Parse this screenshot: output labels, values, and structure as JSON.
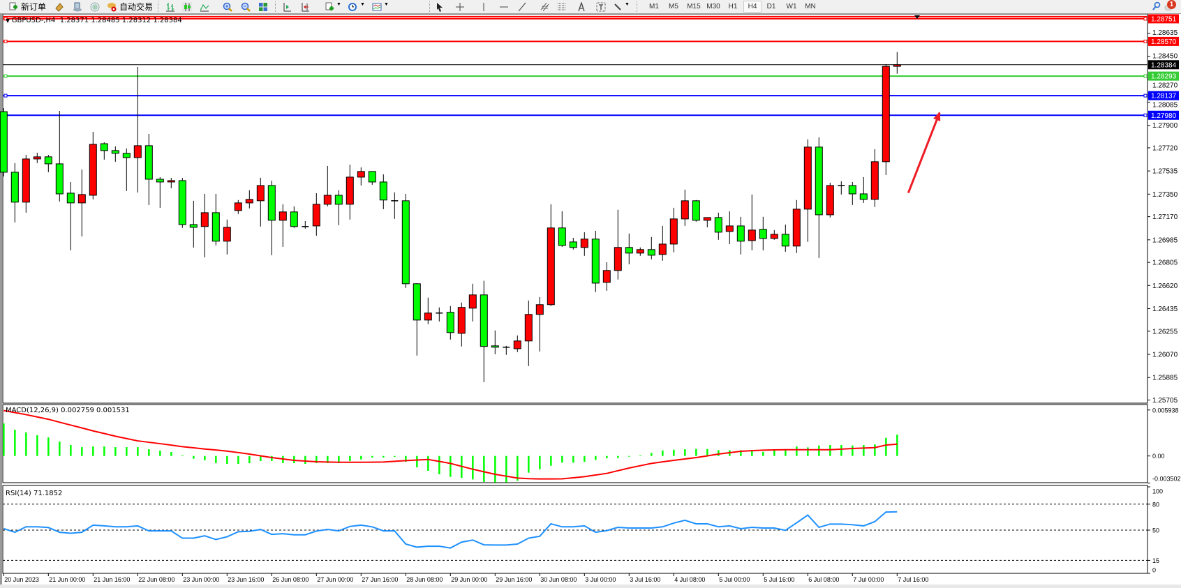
{
  "toolbar": {
    "new_order_label": "新订单",
    "auto_trading_label": "自动交易",
    "timeframes": [
      "M1",
      "M5",
      "M15",
      "M30",
      "H1",
      "H4",
      "D1",
      "W1",
      "MN"
    ],
    "active_timeframe": "H4",
    "notification_count": "1",
    "icons": [
      "new-order-icon",
      "market-watch-icon",
      "navigator-icon",
      "signals-icon",
      "auto-trading-icon",
      "bar-chart-icon",
      "candlestick-icon",
      "line-chart-icon",
      "zoom-in-icon",
      "zoom-out-icon",
      "tile-windows-icon",
      "chart-shift-icon",
      "autoscroll-icon",
      "indicators-icon",
      "periods-icon",
      "templates-icon",
      "cursor-icon",
      "crosshair-icon",
      "vertical-line-icon",
      "horizontal-line-icon",
      "trendline-icon",
      "equidistant-channel-icon",
      "fibonacci-icon",
      "text-icon",
      "text-label-icon",
      "arrows-icon",
      "search-icon",
      "chat-icon"
    ]
  },
  "chart": {
    "legend": "GBPUSD-,H4  1.28371 1.28485 1.28312 1.28384",
    "bull_color": "#ff0000",
    "bear_color": "#00ff00"
  },
  "macd": {
    "legend": "MACD(12,26,9) 0.002759 0.001531"
  },
  "rsi": {
    "legend": "RSI(14) 71.1852"
  },
  "chart_data": [
    {
      "type": "candlestick",
      "symbol": "GBPUSD-",
      "timeframe": "H4",
      "ylim": [
        1.2568,
        1.28784
      ],
      "price_ticks": [
        "1.28635",
        "1.28450",
        "1.28270",
        "1.28085",
        "1.27900",
        "1.27720",
        "1.27535",
        "1.27350",
        "1.27170",
        "1.26985",
        "1.26805",
        "1.26620",
        "1.26435",
        "1.26255",
        "1.26070",
        "1.25885",
        "1.25705"
      ],
      "time_labels": [
        {
          "bar": 0,
          "label": "20 Jun 2023"
        },
        {
          "bar": 4,
          "label": "21 Jun 00:00"
        },
        {
          "bar": 8,
          "label": "21 Jun 16:00"
        },
        {
          "bar": 12,
          "label": "22 Jun 08:00"
        },
        {
          "bar": 16,
          "label": "23 Jun 00:00"
        },
        {
          "bar": 20,
          "label": "23 Jun 16:00"
        },
        {
          "bar": 24,
          "label": "26 Jun 08:00"
        },
        {
          "bar": 28,
          "label": "27 Jun 00:00"
        },
        {
          "bar": 32,
          "label": "27 Jun 16:00"
        },
        {
          "bar": 36,
          "label": "28 Jun 08:00"
        },
        {
          "bar": 40,
          "label": "29 Jun 00:00"
        },
        {
          "bar": 44,
          "label": "29 Jun 16:00"
        },
        {
          "bar": 48,
          "label": "30 Jun 08:00"
        },
        {
          "bar": 52,
          "label": "3 Jul 00:00"
        },
        {
          "bar": 56,
          "label": "3 Jul 16:00"
        },
        {
          "bar": 60,
          "label": "4 Jul 08:00"
        },
        {
          "bar": 64,
          "label": "5 Jul 00:00"
        },
        {
          "bar": 68,
          "label": "5 Jul 16:00"
        },
        {
          "bar": 72,
          "label": "6 Jul 08:00"
        },
        {
          "bar": 76,
          "label": "7 Jul 00:00"
        },
        {
          "bar": 80,
          "label": "7 Jul 16:00"
        }
      ],
      "hlines": [
        {
          "price": "1.28751",
          "color": "#ff0000",
          "style": "double"
        },
        {
          "price": "1.28570",
          "color": "#ff0000"
        },
        {
          "price": "1.28293",
          "color": "#33cc33"
        },
        {
          "price": "1.28137",
          "color": "#0000ff"
        },
        {
          "price": "1.27980",
          "color": "#0000ff"
        }
      ],
      "current_price": "1.28384",
      "annotation_arrow": {
        "color": "#ee1c25",
        "from": {
          "bar": 81,
          "price": 1.2736
        },
        "to": {
          "bar": 83.8,
          "price": 1.28
        }
      },
      "ohlc": [
        [
          1.28009,
          1.28037,
          1.27491,
          1.27525
        ],
        [
          1.27525,
          1.27598,
          1.27124,
          1.27286
        ],
        [
          1.27286,
          1.27664,
          1.27202,
          1.27631
        ],
        [
          1.27631,
          1.27681,
          1.27598,
          1.27648
        ],
        [
          1.27648,
          1.27664,
          1.27525,
          1.27592
        ],
        [
          1.27592,
          1.28015,
          1.27291,
          1.27352
        ],
        [
          1.27358,
          1.27447,
          1.26901,
          1.2728
        ],
        [
          1.2728,
          1.27547,
          1.27012,
          1.27347
        ],
        [
          1.27341,
          1.27848,
          1.27308,
          1.27748
        ],
        [
          1.27753,
          1.27764,
          1.27626,
          1.27698
        ],
        [
          1.27698,
          1.27731,
          1.27609,
          1.27676
        ],
        [
          1.27676,
          1.27715,
          1.27375,
          1.27642
        ],
        [
          1.27642,
          1.28366,
          1.27363,
          1.27737
        ],
        [
          1.27737,
          1.27831,
          1.27263,
          1.27469
        ],
        [
          1.27469,
          1.27486,
          1.27241,
          1.27447
        ],
        [
          1.27447,
          1.2748,
          1.27397,
          1.27458
        ],
        [
          1.27458,
          1.2748,
          1.2708,
          1.27107
        ],
        [
          1.27107,
          1.27297,
          1.26923,
          1.27085
        ],
        [
          1.27091,
          1.27352,
          1.26845,
          1.27202
        ],
        [
          1.27202,
          1.27352,
          1.2694,
          1.26974
        ],
        [
          1.26974,
          1.27147,
          1.26868,
          1.27085
        ],
        [
          1.27219,
          1.27303,
          1.27191,
          1.2728
        ],
        [
          1.2728,
          1.27381,
          1.27236,
          1.27308
        ],
        [
          1.27297,
          1.27481,
          1.27091,
          1.27419
        ],
        [
          1.27419,
          1.27458,
          1.26862,
          1.27141
        ],
        [
          1.27141,
          1.27269,
          1.26929,
          1.27208
        ],
        [
          1.27208,
          1.27252,
          1.2708,
          1.27091
        ],
        [
          1.27091,
          1.27135,
          1.27074,
          1.27091
        ],
        [
          1.27096,
          1.27358,
          1.27018,
          1.27269
        ],
        [
          1.27269,
          1.27575,
          1.27252,
          1.27341
        ],
        [
          1.27341,
          1.27381,
          1.27102,
          1.27269
        ],
        [
          1.27269,
          1.27586,
          1.27147,
          1.27486
        ],
        [
          1.27486,
          1.27564,
          1.27419,
          1.27531
        ],
        [
          1.27531,
          1.27531,
          1.27425,
          1.27447
        ],
        [
          1.27447,
          1.27508,
          1.2723,
          1.27303
        ],
        [
          1.27297,
          1.27364,
          1.27152,
          1.27297
        ],
        [
          1.27297,
          1.27352,
          1.266,
          1.26634
        ],
        [
          1.26634,
          1.26639,
          1.2606,
          1.26344
        ],
        [
          1.26344,
          1.26523,
          1.26311,
          1.264
        ],
        [
          1.264,
          1.26445,
          1.26333,
          1.264
        ],
        [
          1.26406,
          1.26456,
          1.26188,
          1.26244
        ],
        [
          1.26238,
          1.26484,
          1.26133,
          1.26445
        ],
        [
          1.26439,
          1.26634,
          1.26333,
          1.26545
        ],
        [
          1.26545,
          1.26657,
          1.25848,
          1.26133
        ],
        [
          1.26138,
          1.26261,
          1.26071,
          1.26127
        ],
        [
          1.26127,
          1.26138,
          1.26066,
          1.26122
        ],
        [
          1.26115,
          1.26221,
          1.26088,
          1.26177
        ],
        [
          1.26177,
          1.265,
          1.25977,
          1.26389
        ],
        [
          1.26389,
          1.26528,
          1.26093,
          1.26467
        ],
        [
          1.26467,
          1.27269,
          1.26456,
          1.2708
        ],
        [
          1.2708,
          1.27213,
          1.26929,
          1.2694
        ],
        [
          1.26968,
          1.27001,
          1.26907,
          1.26924
        ],
        [
          1.26924,
          1.27046,
          1.26857,
          1.26991
        ],
        [
          1.26991,
          1.27057,
          1.26567,
          1.26639
        ],
        [
          1.26645,
          1.26806,
          1.26578,
          1.2674
        ],
        [
          1.2674,
          1.27225,
          1.26668,
          1.26924
        ],
        [
          1.26924,
          1.27035,
          1.2679,
          1.26879
        ],
        [
          1.26879,
          1.26924,
          1.26857,
          1.26907
        ],
        [
          1.26907,
          1.27007,
          1.26829,
          1.26862
        ],
        [
          1.26868,
          1.27096,
          1.26818,
          1.26951
        ],
        [
          1.26951,
          1.27241,
          1.26885,
          1.27152
        ],
        [
          1.27152,
          1.27386,
          1.27096,
          1.27297
        ],
        [
          1.27297,
          1.27303,
          1.2713,
          1.27141
        ],
        [
          1.27141,
          1.27163,
          1.27085,
          1.27163
        ],
        [
          1.27163,
          1.27202,
          1.26985,
          1.27046
        ],
        [
          1.27052,
          1.27213,
          1.26951,
          1.27096
        ],
        [
          1.27096,
          1.27169,
          1.26868,
          1.26974
        ],
        [
          1.26979,
          1.27347,
          1.26901,
          1.27063
        ],
        [
          1.27069,
          1.27169,
          1.26901,
          1.26996
        ],
        [
          1.26996,
          1.27063,
          1.26985,
          1.27029
        ],
        [
          1.27029,
          1.27107,
          1.2689,
          1.26935
        ],
        [
          1.26935,
          1.27303,
          1.26879,
          1.2723
        ],
        [
          1.2723,
          1.27787,
          1.26969,
          1.27726
        ],
        [
          1.27726,
          1.27804,
          1.2684,
          1.27185
        ],
        [
          1.27185,
          1.27441,
          1.27163,
          1.27419
        ],
        [
          1.27419,
          1.27453,
          1.27347,
          1.27419
        ],
        [
          1.27419,
          1.27447,
          1.27263,
          1.27352
        ],
        [
          1.27352,
          1.27486,
          1.2728,
          1.27308
        ],
        [
          1.27308,
          1.27709,
          1.27247,
          1.27609
        ],
        [
          1.27609,
          1.28389,
          1.27503,
          1.28371
        ],
        [
          1.28371,
          1.28485,
          1.28312,
          1.28384
        ]
      ]
    },
    {
      "type": "bar+line",
      "name": "MACD(12,26,9)",
      "ylim": [
        -0.00345,
        0.00664
      ],
      "ticks": [
        "0.005938",
        "0.00",
        "-0.003502"
      ],
      "histogram_color": "#00ff00",
      "signal_color": "#ff0000",
      "main": [
        0.0042,
        0.00339,
        0.00303,
        0.00267,
        0.0024,
        0.00186,
        0.00141,
        0.00114,
        0.00123,
        0.00123,
        0.00114,
        0.00114,
        0.00114,
        0.00087,
        0.00069,
        0.00051,
        6e-05,
        -0.00036,
        -0.00057,
        -0.00093,
        -0.00102,
        -0.00102,
        -0.00093,
        -0.00066,
        -0.00066,
        -0.00093,
        -0.00093,
        -0.00102,
        -0.00093,
        -0.00093,
        -0.00093,
        -0.00066,
        -0.00045,
        -0.00021,
        -0.00021,
        -0.00012,
        -0.00075,
        -0.00147,
        -0.00192,
        -0.00237,
        -0.0027,
        -0.00282,
        -0.00303,
        -0.00336,
        -0.00342,
        -0.00342,
        -0.00321,
        -0.00216,
        -0.00171,
        -0.00126,
        -0.00087,
        -0.00087,
        -0.00075,
        -0.00051,
        -0.0003,
        -0.00027,
        -6e-05,
        6e-05,
        0.00039,
        0.00072,
        0.00081,
        0.00087,
        0.0009,
        0.0009,
        0.00075,
        0.00075,
        0.00075,
        0.00075,
        0.00054,
        0.00072,
        0.00075,
        0.00123,
        0.00111,
        0.00135,
        0.00141,
        0.00141,
        0.00135,
        0.00141,
        0.0015,
        0.00234,
        0.002759
      ],
      "signal": [
        0.00586,
        0.0056,
        0.00534,
        0.00504,
        0.00474,
        0.00436,
        0.00399,
        0.00362,
        0.00324,
        0.0029,
        0.00255,
        0.00225,
        0.00195,
        0.00177,
        0.00159,
        0.0014,
        0.0012,
        0.00105,
        0.0009,
        0.00077,
        0.00063,
        0.00044,
        0.00024,
        2e-05,
        -0.00021,
        -0.00039,
        -0.00057,
        -0.00066,
        -0.00075,
        -0.00078,
        -0.00081,
        -0.00081,
        -0.00081,
        -0.0008,
        -0.00078,
        -0.00069,
        -0.0006,
        -0.00052,
        -0.00045,
        -0.0007,
        -0.00096,
        -0.00134,
        -0.00171,
        -0.00204,
        -0.00237,
        -0.00261,
        -0.00285,
        -0.00293,
        -0.00297,
        -0.00297,
        -0.00295,
        -0.00282,
        -0.00267,
        -0.00246,
        -0.00225,
        -0.0019,
        -0.00156,
        -0.00126,
        -0.00096,
        -0.00076,
        -0.00057,
        -0.00039,
        -0.00021,
        1e-05,
        0.00024,
        0.00042,
        0.0006,
        0.00068,
        0.00075,
        0.00078,
        0.00081,
        0.00081,
        0.00081,
        0.00081,
        0.00081,
        0.00088,
        0.00096,
        0.00102,
        0.00108,
        0.00141,
        0.001531
      ]
    },
    {
      "type": "line",
      "name": "RSI(14)",
      "ylim": [
        0,
        100
      ],
      "ticks": [
        "100",
        "80",
        "50",
        "15",
        "0"
      ],
      "levels": [
        80,
        50,
        15
      ],
      "color": "#1e90ff",
      "values": [
        51.8,
        47.5,
        53.8,
        53.8,
        53,
        47.5,
        46.4,
        47.5,
        55.7,
        54.9,
        53.8,
        53.8,
        54.9,
        49.1,
        49.1,
        49.1,
        40.7,
        40.7,
        43.4,
        39.1,
        42.3,
        48.1,
        48.6,
        50.8,
        45.1,
        45.9,
        44.6,
        44.6,
        48.9,
        50.8,
        49.1,
        54.3,
        55.7,
        53.8,
        49.1,
        49.1,
        33.9,
        30.3,
        31.4,
        31.4,
        29.3,
        36.1,
        38.5,
        33,
        32.8,
        32.8,
        33.9,
        40.7,
        42.9,
        57.3,
        53.8,
        53.8,
        54.9,
        47.5,
        49.4,
        53.2,
        52.4,
        52.4,
        52.4,
        53.8,
        58.1,
        61.4,
        57.3,
        57.3,
        53.8,
        54.9,
        51.6,
        53.2,
        52.4,
        52.4,
        49.7,
        58.4,
        67.4,
        53.2,
        57,
        57,
        56.2,
        54.9,
        59.8,
        70.9,
        71.1852
      ]
    }
  ]
}
